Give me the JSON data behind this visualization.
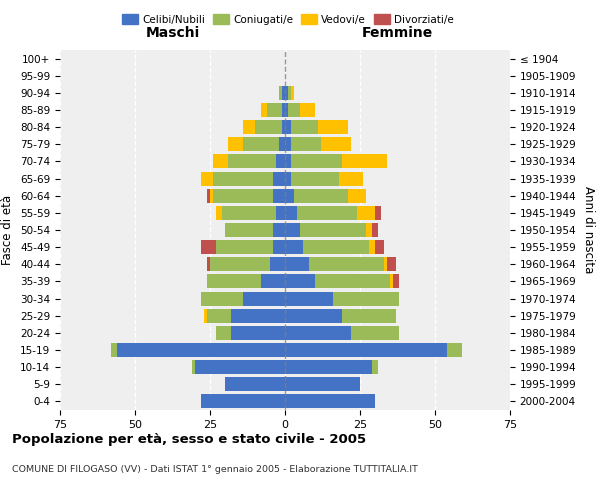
{
  "age_groups": [
    "0-4",
    "5-9",
    "10-14",
    "15-19",
    "20-24",
    "25-29",
    "30-34",
    "35-39",
    "40-44",
    "45-49",
    "50-54",
    "55-59",
    "60-64",
    "65-69",
    "70-74",
    "75-79",
    "80-84",
    "85-89",
    "90-94",
    "95-99",
    "100+"
  ],
  "birth_years": [
    "2000-2004",
    "1995-1999",
    "1990-1994",
    "1985-1989",
    "1980-1984",
    "1975-1979",
    "1970-1974",
    "1965-1969",
    "1960-1964",
    "1955-1959",
    "1950-1954",
    "1945-1949",
    "1940-1944",
    "1935-1939",
    "1930-1934",
    "1925-1929",
    "1920-1924",
    "1915-1919",
    "1910-1914",
    "1905-1909",
    "≤ 1904"
  ],
  "maschi": {
    "celibe": [
      28,
      20,
      30,
      56,
      18,
      18,
      14,
      8,
      5,
      4,
      4,
      3,
      4,
      4,
      3,
      2,
      1,
      1,
      1,
      0,
      0
    ],
    "coniugato": [
      0,
      0,
      1,
      2,
      5,
      8,
      14,
      18,
      20,
      19,
      16,
      18,
      20,
      20,
      16,
      12,
      9,
      5,
      1,
      0,
      0
    ],
    "vedovo": [
      0,
      0,
      0,
      0,
      0,
      1,
      0,
      0,
      0,
      0,
      0,
      2,
      1,
      4,
      5,
      5,
      4,
      2,
      0,
      0,
      0
    ],
    "divorziato": [
      0,
      0,
      0,
      0,
      0,
      0,
      0,
      0,
      1,
      5,
      0,
      0,
      1,
      0,
      0,
      0,
      0,
      0,
      0,
      0,
      0
    ]
  },
  "femmine": {
    "nubile": [
      30,
      25,
      29,
      54,
      22,
      19,
      16,
      10,
      8,
      6,
      5,
      4,
      3,
      2,
      2,
      2,
      2,
      1,
      1,
      0,
      0
    ],
    "coniugata": [
      0,
      0,
      2,
      5,
      16,
      18,
      22,
      25,
      25,
      22,
      22,
      20,
      18,
      16,
      17,
      10,
      9,
      4,
      1,
      0,
      0
    ],
    "vedova": [
      0,
      0,
      0,
      0,
      0,
      0,
      0,
      1,
      1,
      2,
      2,
      6,
      6,
      8,
      15,
      10,
      10,
      5,
      1,
      0,
      0
    ],
    "divorziata": [
      0,
      0,
      0,
      0,
      0,
      0,
      0,
      2,
      3,
      3,
      2,
      2,
      0,
      0,
      0,
      0,
      0,
      0,
      0,
      0,
      0
    ]
  },
  "colors": {
    "celibe": "#4472C4",
    "coniugato": "#9BBB59",
    "vedovo": "#FFC000",
    "divorziato": "#C0504D"
  },
  "xlim": 75,
  "title": "Popolazione per età, sesso e stato civile - 2005",
  "subtitle": "COMUNE DI FILOGASO (VV) - Dati ISTAT 1° gennaio 2005 - Elaborazione TUTTITALIA.IT",
  "xlabel_left": "Maschi",
  "xlabel_right": "Femmine",
  "ylabel_left": "Fasce di età",
  "ylabel_right": "Anni di nascita",
  "plot_bg_color": "#efefef",
  "background_color": "#ffffff",
  "grid_color": "#cccccc"
}
